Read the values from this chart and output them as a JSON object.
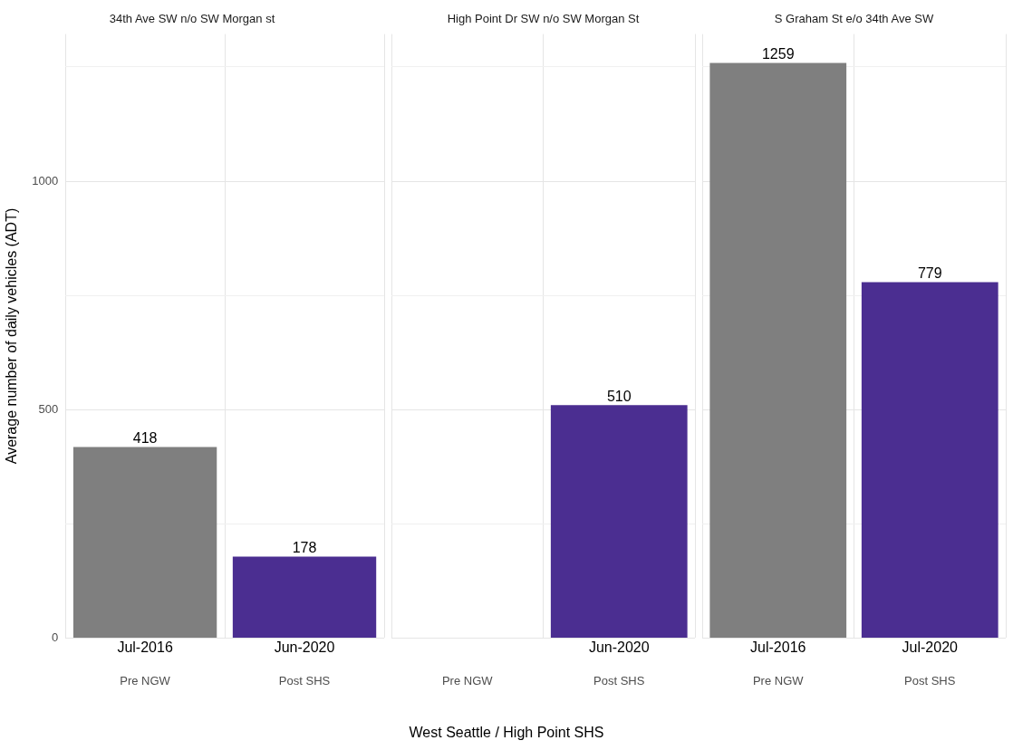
{
  "chart_data": [
    {
      "type": "bar",
      "title": "34th Ave SW n/o SW Morgan st",
      "ylabel": "Average number of daily vehicles (ADT)",
      "categories": [
        "Pre NGW",
        "Post SHS"
      ],
      "values": [
        418,
        178
      ],
      "colors": [
        "#7f7f7f",
        "#4b2e91"
      ],
      "ylim": [
        0,
        1322
      ],
      "yticks": [
        0,
        {
          "value": 250,
          "label": null
        },
        500,
        {
          "value": 750,
          "label": null
        },
        1000,
        {
          "value": 1250,
          "label": null
        }
      ],
      "grid": true,
      "data_labels": true,
      "annotations": [
        {
          "text": "Jul-2016",
          "x": "Pre NGW",
          "y": 0
        },
        {
          "text": "Jun-2020",
          "x": "Post SHS",
          "y": 0
        }
      ]
    },
    {
      "type": "bar",
      "title": "High Point Dr SW n/o SW Morgan St",
      "xlabel": "West Seattle / High Point SHS",
      "categories": [
        "Pre NGW",
        "Post SHS"
      ],
      "values": [
        null,
        510
      ],
      "colors": [
        "#7f7f7f",
        "#4b2e91"
      ],
      "ylim": [
        0,
        1322
      ],
      "yticks": [
        0,
        {
          "value": 250,
          "label": null
        },
        500,
        {
          "value": 750,
          "label": null
        },
        1000,
        {
          "value": 1250,
          "label": null
        }
      ],
      "grid": true,
      "data_labels": true,
      "tick_labels": "x",
      "annotations": [
        {
          "text": "Jun-2020",
          "x": "Post SHS",
          "y": 0
        }
      ]
    },
    {
      "type": "bar",
      "title": "S Graham St e/o 34th Ave SW",
      "categories": [
        "Pre NGW",
        "Post SHS"
      ],
      "values": [
        1259,
        779
      ],
      "colors": [
        "#7f7f7f",
        "#4b2e91"
      ],
      "ylim": [
        0,
        1322
      ],
      "yticks": [
        0,
        {
          "value": 250,
          "label": null
        },
        500,
        {
          "value": 750,
          "label": null
        },
        1000,
        {
          "value": 1250,
          "label": null
        }
      ],
      "grid": true,
      "data_labels": true,
      "tick_labels": "x",
      "annotations": [
        {
          "text": "Jul-2016",
          "x": "Pre NGW",
          "y": 0
        },
        {
          "text": "Jul-2020",
          "x": "Post SHS",
          "y": 0
        }
      ]
    }
  ]
}
